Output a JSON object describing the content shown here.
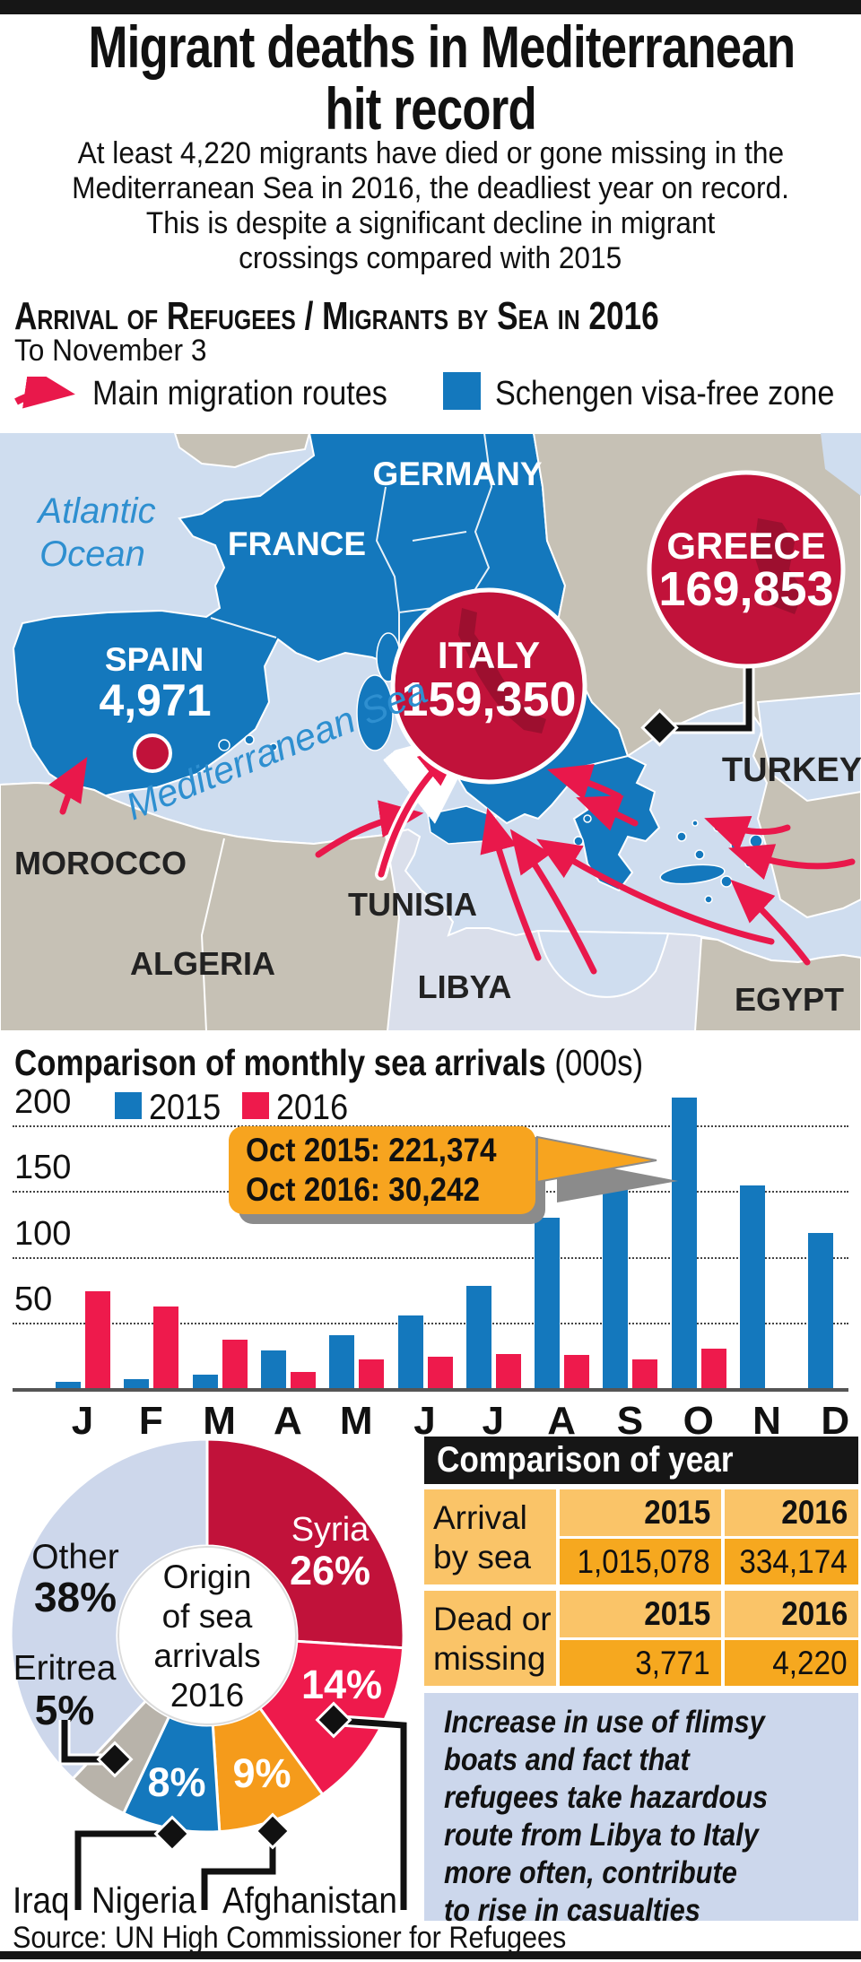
{
  "colors": {
    "schengen_blue": "#1478bd",
    "crimson": "#c1123a",
    "route_red": "#e9184b",
    "pink_2016": "#ee1a4c",
    "orange": "#f59b1b",
    "sea": "#cfddef",
    "land_gray": "#c6c1b5",
    "land_pale": "#dadfeb",
    "table_light": "#fac468",
    "table_dark": "#f6a81f",
    "callout_orange": "#f7a41f",
    "note_bg": "#ccd7ec",
    "bar_black": "#161616"
  },
  "header": {
    "title_line1": "Migrant deaths in Mediterranean",
    "title_line2": "hit record",
    "subtitle_lines": [
      "At least 4,220 migrants have died or gone missing in the",
      "Mediterranean Sea in 2016, the deadliest year on record.",
      "This is despite a significant decline in migrant",
      "crossings compared with 2015"
    ]
  },
  "section": {
    "heading": "Arrival of Refugees / Migrants by Sea in 2016",
    "date_note": "To November 3",
    "legend": [
      {
        "symbol": "arrow",
        "label": "Main migration routes",
        "color": "#e9184b"
      },
      {
        "symbol": "square",
        "label": "Schengen visa-free zone",
        "color": "#1478bd"
      }
    ]
  },
  "map": {
    "atlantic_line1": "Atlantic",
    "atlantic_line2": "Ocean",
    "mediterranean": "Mediterranean Sea",
    "germany": "GERMANY",
    "france": "FRANCE",
    "spain": "SPAIN",
    "spain_value": "4,971",
    "italy": "ITALY",
    "italy_value": "159,350",
    "greece": "GREECE",
    "greece_value": "169,853",
    "morocco": "MOROCCO",
    "algeria": "ALGERIA",
    "tunisia": "TUNISIA",
    "libya": "LIBYA",
    "egypt": "EGYPT",
    "turkey": "TURKEY"
  },
  "chart_data": [
    {
      "type": "bar",
      "title": "Comparison of monthly sea arrivals",
      "unit_note": "(000s)",
      "categories": [
        "J",
        "F",
        "M",
        "A",
        "M",
        "J",
        "J",
        "A",
        "S",
        "O",
        "N",
        "D"
      ],
      "series": [
        {
          "name": "2015",
          "color": "#1478bd",
          "values": [
            5,
            7,
            10,
            29,
            40,
            55,
            78,
            130,
            163,
            221.4,
            154,
            118
          ]
        },
        {
          "name": "2016",
          "color": "#ee1a4c",
          "values": [
            74,
            62,
            37,
            12,
            22,
            24,
            26,
            25,
            22,
            30.2,
            null,
            null
          ]
        }
      ],
      "y_ticks": [
        50,
        100,
        150,
        200
      ],
      "ylim": [
        0,
        230
      ],
      "grid": "dotted-horizontal",
      "legend_position": "top-left",
      "annotation": [
        "Oct 2015: 221,374",
        "Oct 2016: 30,242"
      ]
    },
    {
      "type": "pie",
      "subtype": "donut",
      "center_label_lines": [
        "Origin",
        "of sea",
        "arrivals",
        "2016"
      ],
      "slices": [
        {
          "label": "Syria",
          "value": 26,
          "pct": "26%",
          "color": "#c1123a"
        },
        {
          "label": "Afghanistan",
          "value": 14,
          "pct": "14%",
          "color": "#ee1a4c"
        },
        {
          "label": "Nigeria",
          "value": 9,
          "pct": "9%",
          "color": "#f59b1b"
        },
        {
          "label": "Iraq",
          "value": 8,
          "pct": "8%",
          "color": "#1478bd"
        },
        {
          "label": "Eritrea",
          "value": 5,
          "pct": "5%",
          "color": "#b8b3aa"
        },
        {
          "label": "Other",
          "value": 38,
          "pct": "38%",
          "color": "#cdd7eb"
        }
      ]
    },
    {
      "type": "table",
      "title": "Comparison of year",
      "column_headers": [
        "2015",
        "2016"
      ],
      "rows": [
        {
          "label_lines": [
            "Arrival",
            "by sea"
          ],
          "values": [
            "1,015,078",
            "334,174"
          ]
        },
        {
          "label_lines": [
            "Dead or",
            "missing"
          ],
          "values": [
            "3,771",
            "4,220"
          ]
        }
      ]
    }
  ],
  "note_lines": [
    "Increase in use of flimsy",
    "boats and fact that",
    "refugees take hazardous",
    "route from Libya to Italy",
    "more often, contribute",
    "to rise in casualties"
  ],
  "source": "Source: UN High Commissioner for Refugees"
}
